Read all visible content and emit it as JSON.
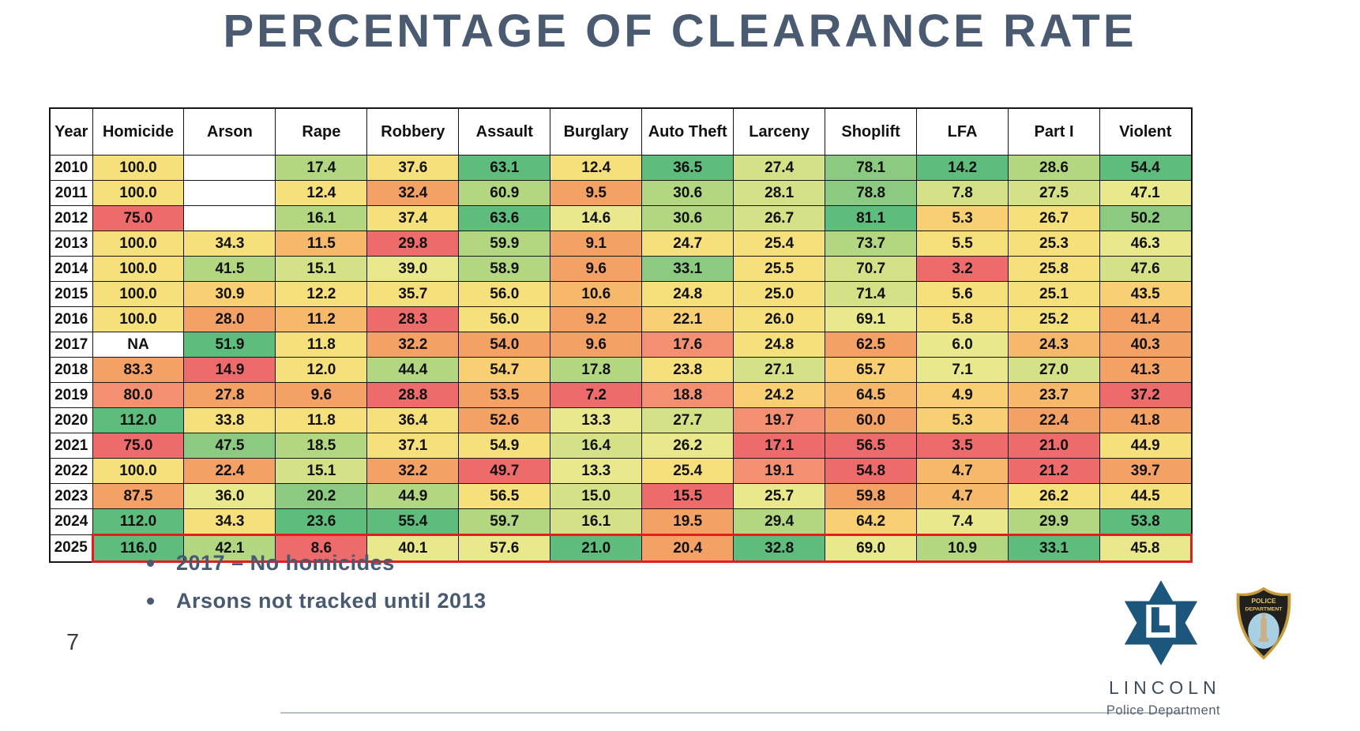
{
  "title": "PERCENTAGE OF CLEARANCE RATE",
  "notes": [
    "2017 – No homicides",
    "Arsons not tracked until 2013"
  ],
  "page_number": "7",
  "footer_logo": {
    "name": "LINCOLN",
    "subtitle": "Police Department"
  },
  "badge": {
    "line1": "POLICE",
    "line2": "DEPARTMENT"
  },
  "chart_data": {
    "type": "heatmap",
    "title": "PERCENTAGE OF CLEARANCE RATE",
    "columns": [
      "Year",
      "Homicide",
      "Arson",
      "Rape",
      "Robbery",
      "Assault",
      "Burglary",
      "Auto Theft",
      "Larceny",
      "Shoplift",
      "LFA",
      "Part I",
      "Violent"
    ],
    "years": [
      "2010",
      "2011",
      "2012",
      "2013",
      "2014",
      "2015",
      "2016",
      "2017",
      "2018",
      "2019",
      "2020",
      "2021",
      "2022",
      "2023",
      "2024",
      "2025"
    ],
    "values": [
      [
        "100.0",
        "",
        "17.4",
        "37.6",
        "63.1",
        "12.4",
        "36.5",
        "27.4",
        "78.1",
        "14.2",
        "28.6",
        "54.4"
      ],
      [
        "100.0",
        "",
        "12.4",
        "32.4",
        "60.9",
        "9.5",
        "30.6",
        "28.1",
        "78.8",
        "7.8",
        "27.5",
        "47.1"
      ],
      [
        "75.0",
        "",
        "16.1",
        "37.4",
        "63.6",
        "14.6",
        "30.6",
        "26.7",
        "81.1",
        "5.3",
        "26.7",
        "50.2"
      ],
      [
        "100.0",
        "34.3",
        "11.5",
        "29.8",
        "59.9",
        "9.1",
        "24.7",
        "25.4",
        "73.7",
        "5.5",
        "25.3",
        "46.3"
      ],
      [
        "100.0",
        "41.5",
        "15.1",
        "39.0",
        "58.9",
        "9.6",
        "33.1",
        "25.5",
        "70.7",
        "3.2",
        "25.8",
        "47.6"
      ],
      [
        "100.0",
        "30.9",
        "12.2",
        "35.7",
        "56.0",
        "10.6",
        "24.8",
        "25.0",
        "71.4",
        "5.6",
        "25.1",
        "43.5"
      ],
      [
        "100.0",
        "28.0",
        "11.2",
        "28.3",
        "56.0",
        "9.2",
        "22.1",
        "26.0",
        "69.1",
        "5.8",
        "25.2",
        "41.4"
      ],
      [
        "NA",
        "51.9",
        "11.8",
        "32.2",
        "54.0",
        "9.6",
        "17.6",
        "24.8",
        "62.5",
        "6.0",
        "24.3",
        "40.3"
      ],
      [
        "83.3",
        "14.9",
        "12.0",
        "44.4",
        "54.7",
        "17.8",
        "23.8",
        "27.1",
        "65.7",
        "7.1",
        "27.0",
        "41.3"
      ],
      [
        "80.0",
        "27.8",
        "9.6",
        "28.8",
        "53.5",
        "7.2",
        "18.8",
        "24.2",
        "64.5",
        "4.9",
        "23.7",
        "37.2"
      ],
      [
        "112.0",
        "33.8",
        "11.8",
        "36.4",
        "52.6",
        "13.3",
        "27.7",
        "19.7",
        "60.0",
        "5.3",
        "22.4",
        "41.8"
      ],
      [
        "75.0",
        "47.5",
        "18.5",
        "37.1",
        "54.9",
        "16.4",
        "26.2",
        "17.1",
        "56.5",
        "3.5",
        "21.0",
        "44.9"
      ],
      [
        "100.0",
        "22.4",
        "15.1",
        "32.2",
        "49.7",
        "13.3",
        "25.4",
        "19.1",
        "54.8",
        "4.7",
        "21.2",
        "39.7"
      ],
      [
        "87.5",
        "36.0",
        "20.2",
        "44.9",
        "56.5",
        "15.0",
        "15.5",
        "25.7",
        "59.8",
        "4.7",
        "26.2",
        "44.5"
      ],
      [
        "112.0",
        "34.3",
        "23.6",
        "55.4",
        "59.7",
        "16.1",
        "19.5",
        "29.4",
        "64.2",
        "7.4",
        "29.9",
        "53.8"
      ],
      [
        "116.0",
        "42.1",
        "8.6",
        "40.1",
        "57.6",
        "21.0",
        "20.4",
        "32.8",
        "69.0",
        "10.9",
        "33.1",
        "45.8"
      ]
    ],
    "cell_colors": [
      [
        "Y",
        "W",
        "LG",
        "Y",
        "G",
        "Y",
        "G",
        "GY",
        "MG",
        "G",
        "LG",
        "G"
      ],
      [
        "Y",
        "W",
        "Y",
        "O",
        "LG",
        "O",
        "LG",
        "GY",
        "MG",
        "GY",
        "GY",
        "YG"
      ],
      [
        "R",
        "W",
        "LG",
        "Y",
        "G",
        "YG",
        "LG",
        "GY",
        "G",
        "YO",
        "Y",
        "MG"
      ],
      [
        "Y",
        "Y",
        "LO",
        "R",
        "LG",
        "O",
        "Y",
        "Y",
        "LG",
        "Y",
        "Y",
        "YG"
      ],
      [
        "Y",
        "LG",
        "GY",
        "YG",
        "LG",
        "O",
        "MG",
        "Y",
        "GY",
        "R",
        "Y",
        "GY"
      ],
      [
        "Y",
        "YO",
        "Y",
        "Y",
        "Y",
        "LO",
        "Y",
        "Y",
        "GY",
        "Y",
        "Y",
        "YO"
      ],
      [
        "Y",
        "O",
        "LO",
        "R",
        "Y",
        "O",
        "YO",
        "Y",
        "YG",
        "Y",
        "Y",
        "O"
      ],
      [
        "W",
        "G",
        "Y",
        "O",
        "O",
        "O",
        "RO",
        "Y",
        "O",
        "YG",
        "LO",
        "O"
      ],
      [
        "O",
        "R",
        "Y",
        "LG",
        "YO",
        "LG",
        "Y",
        "GY",
        "YO",
        "YG",
        "GY",
        "O"
      ],
      [
        "RO",
        "O",
        "O",
        "R",
        "O",
        "R",
        "RO",
        "YO",
        "LO",
        "YO",
        "LO",
        "R"
      ],
      [
        "G",
        "Y",
        "Y",
        "Y",
        "O",
        "YG",
        "GY",
        "RO",
        "O",
        "YO",
        "O",
        "O"
      ],
      [
        "R",
        "MG",
        "LG",
        "Y",
        "Y",
        "GY",
        "YG",
        "R",
        "R",
        "R",
        "R",
        "Y"
      ],
      [
        "Y",
        "O",
        "GY",
        "O",
        "R",
        "YG",
        "Y",
        "RO",
        "R",
        "LO",
        "R",
        "O"
      ],
      [
        "O",
        "YG",
        "MG",
        "LG",
        "Y",
        "GY",
        "R",
        "YG",
        "O",
        "LO",
        "Y",
        "Y"
      ],
      [
        "G",
        "Y",
        "G",
        "G",
        "LG",
        "GY",
        "O",
        "LG",
        "YO",
        "YG",
        "LG",
        "G"
      ],
      [
        "G",
        "LG",
        "R",
        "YG",
        "YG",
        "G",
        "O",
        "G",
        "YG",
        "LG",
        "G",
        "YG"
      ]
    ],
    "palette": {
      "G": "#5ebc7d",
      "MG": "#8bca80",
      "LG": "#b3d781",
      "GY": "#d4e187",
      "YG": "#eae88c",
      "Y": "#f6e07c",
      "YO": "#f8cf72",
      "LO": "#f6b96c",
      "O": "#f4a165",
      "RO": "#f29071",
      "R": "#ee6b6b",
      "W": "#ffffff"
    },
    "highlight_row": "2025",
    "highlight_color": "#e11d1d",
    "legend_position": "none",
    "grid": true
  }
}
